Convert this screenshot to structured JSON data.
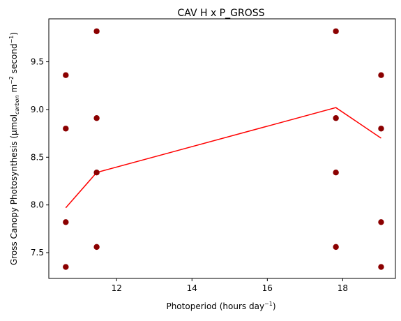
{
  "chart_data": {
    "type": "scatter",
    "title": "CAV H x P_GROSS",
    "xlabel": "Photoperiod (hours day",
    "xlabel_sup": "−1",
    "xlabel_end": ")",
    "ylabel": "Gross Canopy Photosynthesis (µmol",
    "ylabel_sub": "carbon",
    "ylabel_mid": " m",
    "ylabel_sup1": "−2",
    "ylabel_mid2": " second",
    "ylabel_sup2": "−1",
    "ylabel_end": ")",
    "xlim": [
      10.2,
      19.4
    ],
    "ylim": [
      7.23,
      9.95
    ],
    "xticks": [
      12,
      14,
      16,
      18
    ],
    "yticks": [
      7.5,
      8.0,
      8.5,
      9.0,
      9.5
    ],
    "xtick_labels": [
      "12",
      "14",
      "16",
      "18"
    ],
    "ytick_labels": [
      "7.5",
      "8.0",
      "8.5",
      "9.0",
      "9.5"
    ],
    "grid": false,
    "scatter": {
      "color": "#8b0000",
      "points": [
        {
          "x": 10.65,
          "y": 9.36
        },
        {
          "x": 10.65,
          "y": 8.8
        },
        {
          "x": 10.65,
          "y": 7.82
        },
        {
          "x": 10.65,
          "y": 7.35
        },
        {
          "x": 11.47,
          "y": 9.82
        },
        {
          "x": 11.47,
          "y": 8.91
        },
        {
          "x": 11.47,
          "y": 8.34
        },
        {
          "x": 11.47,
          "y": 7.56
        },
        {
          "x": 17.82,
          "y": 9.82
        },
        {
          "x": 17.82,
          "y": 8.91
        },
        {
          "x": 17.82,
          "y": 8.34
        },
        {
          "x": 17.82,
          "y": 7.56
        },
        {
          "x": 19.02,
          "y": 9.36
        },
        {
          "x": 19.02,
          "y": 8.8
        },
        {
          "x": 19.02,
          "y": 7.82
        },
        {
          "x": 19.02,
          "y": 7.35
        }
      ]
    },
    "line": {
      "color": "#ff0000",
      "points": [
        {
          "x": 10.65,
          "y": 7.97
        },
        {
          "x": 11.47,
          "y": 8.34
        },
        {
          "x": 17.82,
          "y": 9.02
        },
        {
          "x": 19.02,
          "y": 8.7
        }
      ]
    }
  }
}
